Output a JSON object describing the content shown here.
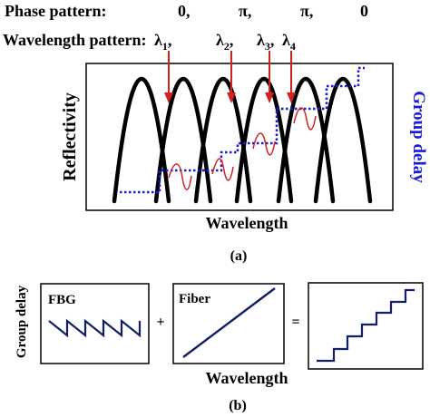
{
  "part_a": {
    "phase_label": "Phase pattern:",
    "phases": [
      "0,",
      "π,",
      "π,",
      "0"
    ],
    "wavelength_label": "Wavelength pattern:",
    "lambdas": [
      {
        "sym": "λ",
        "sub": "1",
        "suffix": ","
      },
      {
        "sym": "λ",
        "sub": "2",
        "suffix": ","
      },
      {
        "sym": "λ",
        "sub": "3",
        "suffix": ","
      },
      {
        "sym": "λ",
        "sub": "4",
        "suffix": ""
      }
    ],
    "y_label": "Reflectivity",
    "y2_label": "Group delay",
    "x_label": "Wavelength",
    "caption": "(a)"
  },
  "part_b": {
    "panel_fbg_label": "FBG",
    "panel_fiber_label": "Fiber",
    "op_plus": "+",
    "op_equals": "=",
    "y_label": "Group delay",
    "x_label": "Wavelength",
    "caption": "(b)"
  },
  "colors": {
    "reflectivity": "#000000",
    "group_delay": "#1a1adb",
    "arrow": "#d42020",
    "local_delay": "#d42020",
    "panel_line": "#121e66"
  }
}
